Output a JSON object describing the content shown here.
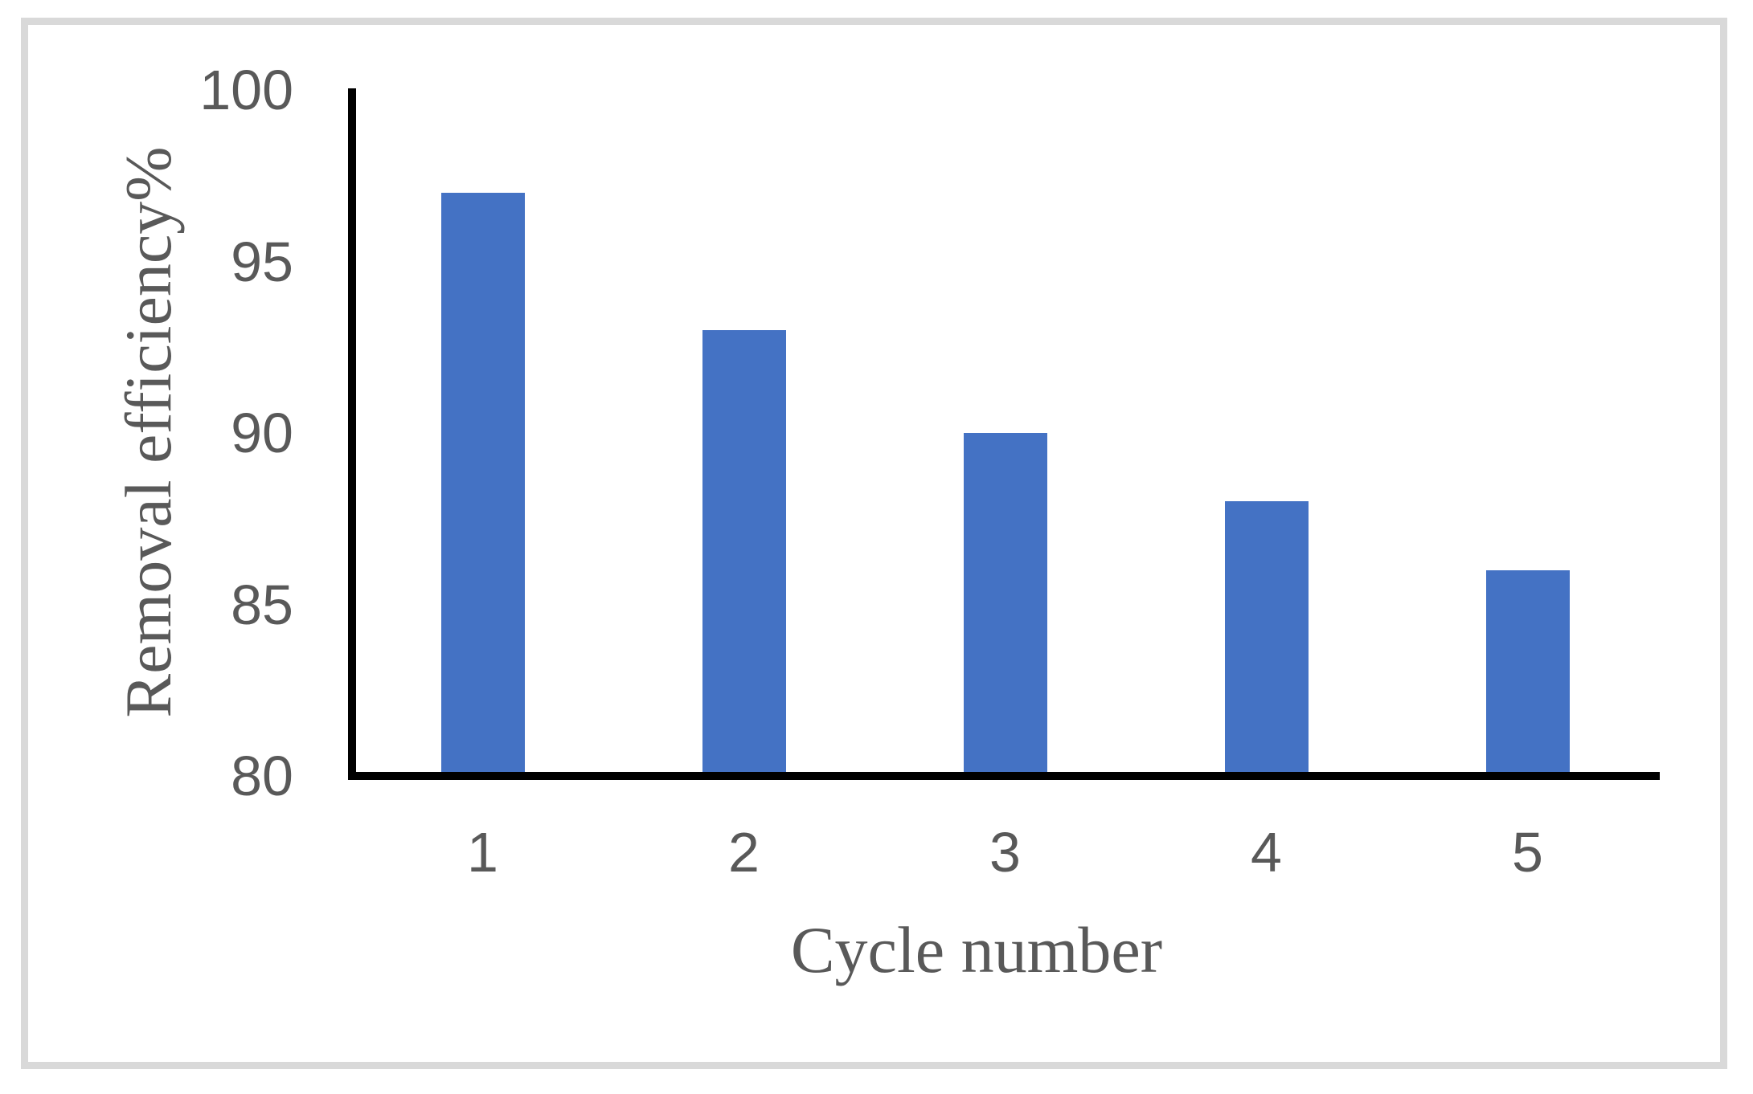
{
  "colors": {
    "bar": "#4472C4",
    "axis_line": "#000000",
    "text": "#595959",
    "frame_border": "#d9d9d9",
    "background": "#ffffff"
  },
  "chart_data": {
    "type": "bar",
    "categories": [
      "1",
      "2",
      "3",
      "4",
      "5"
    ],
    "values": [
      97,
      93,
      90,
      88,
      86
    ],
    "title": "",
    "xlabel": "Cycle number",
    "ylabel": "Removal efficiency%",
    "ylim": [
      80,
      100
    ],
    "yticks": [
      80,
      85,
      90,
      95,
      100
    ],
    "grid": "off",
    "legend": "none"
  }
}
